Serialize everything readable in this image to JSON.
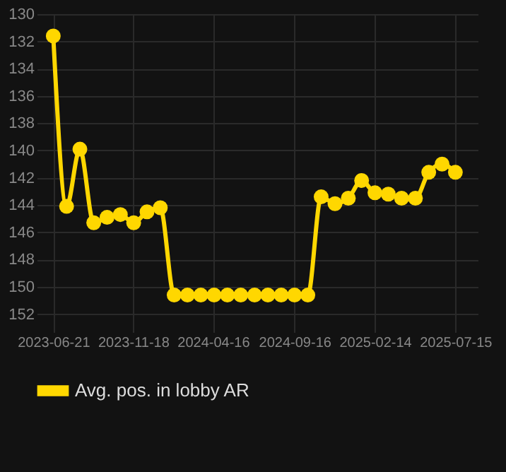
{
  "chart_data": {
    "type": "line",
    "x": [
      "2023-06-21",
      "2023-07-16",
      "2023-08-10",
      "2023-09-05",
      "2023-09-30",
      "2023-10-25",
      "2023-11-19",
      "2023-12-14",
      "2024-01-08",
      "2024-02-03",
      "2024-02-28",
      "2024-03-24",
      "2024-04-18",
      "2024-05-13",
      "2024-06-07",
      "2024-07-03",
      "2024-07-28",
      "2024-08-22",
      "2024-09-16",
      "2024-10-11",
      "2024-11-05",
      "2024-12-01",
      "2024-12-26",
      "2025-01-20",
      "2025-02-14",
      "2025-03-11",
      "2025-04-05",
      "2025-05-01",
      "2025-05-26",
      "2025-06-20",
      "2025-07-15"
    ],
    "series": [
      {
        "name": "Avg. pos. in lobby AR",
        "color": "#ffd700",
        "values": [
          131.6,
          144.1,
          139.9,
          145.3,
          144.9,
          144.7,
          145.3,
          144.5,
          144.2,
          150.6,
          150.6,
          150.6,
          150.6,
          150.6,
          150.6,
          150.6,
          150.6,
          150.6,
          150.6,
          150.6,
          143.4,
          143.9,
          143.5,
          142.2,
          143.1,
          143.2,
          143.5,
          143.5,
          141.6,
          141.0,
          141.6
        ]
      }
    ],
    "ylim": [
      152.8,
      130
    ],
    "yticks": [
      130,
      132,
      134,
      136,
      138,
      140,
      142,
      144,
      146,
      148,
      150,
      152
    ],
    "xlim": [
      "2023-05-21",
      "2025-08-26"
    ],
    "xticks": [
      "2023-06-21",
      "2023-11-18",
      "2024-04-16",
      "2024-09-16",
      "2025-02-14",
      "2025-07-15"
    ],
    "grid": true,
    "legend": "bottom",
    "marker": "circle",
    "line_style": "solid"
  }
}
